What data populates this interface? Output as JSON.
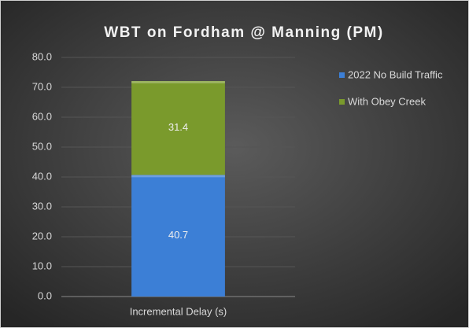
{
  "chart_data": {
    "type": "stacked_bar",
    "title": "WBT on Fordham @ Manning (PM)",
    "categories": [
      "Incremental Delay (s)"
    ],
    "series": [
      {
        "name": "2022 No Build Traffic",
        "color": "#3c7fd6",
        "values": [
          40.7
        ]
      },
      {
        "name": "With Obey Creek",
        "color": "#7a9a2c",
        "values": [
          31.4
        ]
      }
    ],
    "ylim": [
      0,
      80
    ],
    "yticks": [
      {
        "value": 0,
        "label": "0.0"
      },
      {
        "value": 10,
        "label": "10.0"
      },
      {
        "value": 20,
        "label": "20.0"
      },
      {
        "value": 30,
        "label": "30.0"
      },
      {
        "value": 40,
        "label": "40.0"
      },
      {
        "value": 50,
        "label": "50.0"
      },
      {
        "value": 60,
        "label": "60.0"
      },
      {
        "value": 70,
        "label": "70.0"
      },
      {
        "value": 80,
        "label": "80.0"
      }
    ],
    "grid": true,
    "legend": "right"
  }
}
